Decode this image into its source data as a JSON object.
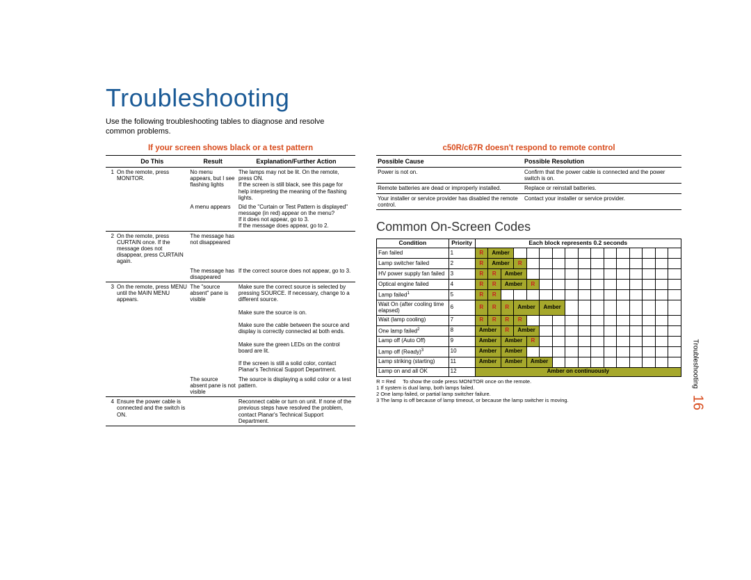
{
  "page": {
    "title": "Troubleshooting",
    "intro": "Use the following troubleshooting tables to diagnose and resolve common problems.",
    "side_section": "Troubleshooting",
    "page_number": "16"
  },
  "left": {
    "heading": "If your screen shows black or a test pattern",
    "cols": [
      "Do This",
      "Result",
      "Explanation/Further Action"
    ],
    "rows": [
      {
        "n": "1",
        "do": "On the remote, press MONITOR.",
        "res": "No menu appears, but I see flashing lights",
        "exp": "The lamps may not be lit. On the remote, press ON.\nIf the screen is still black, see this page for help interpreting the meaning of the flashing lights.",
        "border": false
      },
      {
        "n": "",
        "do": "",
        "res": "A menu appears",
        "exp": "Did the \"Curtain or Test Pattern is displayed\" message (in red) appear on the menu?\nIf it does not appear, go to 3.\nIf the message does appear, go to 2.",
        "border": true
      },
      {
        "n": "2",
        "do": "On the remote, press CURTAIN once. If the message does not disappear, press CURTAIN again.",
        "res": "The message has not disappeared",
        "exp": "",
        "border": false
      },
      {
        "n": "",
        "do": "",
        "res": "The message has disappeared",
        "exp": "If the correct source does not appear, go to 3.",
        "border": true
      },
      {
        "n": "3",
        "do": "On the remote, press MENU until the MAIN MENU appears.",
        "res": "The \"source absent\" pane is visible",
        "exp": "Make sure the correct source is selected by pressing SOURCE. If necessary, change to a different source.\n\nMake sure the source is on.\n\nMake sure the cable between the source and display is correctly connected at both ends.\n\nMake sure the green LEDs on the control board are lit.\n\nIf the screen is still a solid color, contact Planar's Technical Support Department.",
        "border": false
      },
      {
        "n": "",
        "do": "",
        "res": "The source absent pane is not visible",
        "exp": "The source is displaying a solid color or a test pattern.",
        "border": true
      },
      {
        "n": "4",
        "do": "Ensure the power cable is connected and the switch is ON.",
        "res": "",
        "exp": "Reconnect cable or turn on unit. If none of the previous steps have resolved the problem, contact Planar's Technical Support Department.",
        "border": true
      }
    ]
  },
  "right_top": {
    "heading": "c50R/c67R doesn't respond to remote control",
    "cols": [
      "Possible Cause",
      "Possible Resolution"
    ],
    "rows": [
      {
        "cause": "Power is not on.",
        "res": "Confirm that the power cable is connected and the power switch is on."
      },
      {
        "cause": "Remote batteries are dead or improperly installed.",
        "res": "Replace or reinstall batteries."
      },
      {
        "cause": "Your installer or service provider has disabled the remote control.",
        "res": "Contact your installer or service provider."
      }
    ]
  },
  "codes": {
    "heading": "Common On-Screen Codes",
    "cols": [
      "Condition",
      "Priority",
      "Each block represents 0.2 seconds"
    ],
    "block_count": 16,
    "colors": {
      "amber_bg": "#a6a82c",
      "red_text": "#c81e1e"
    },
    "rows": [
      {
        "cond": "Fan failed",
        "prio": "1",
        "cells": [
          "R",
          "Amber",
          "",
          "",
          "",
          "",
          "",
          "",
          "",
          "",
          "",
          "",
          "",
          "",
          "",
          ""
        ]
      },
      {
        "cond": "Lamp switcher failed",
        "prio": "2",
        "cells": [
          "R",
          "Amber",
          "",
          "R",
          "",
          "",
          "",
          "",
          "",
          "",
          "",
          "",
          "",
          "",
          "",
          ""
        ]
      },
      {
        "cond": "HV power supply fan failed",
        "prio": "3",
        "cells": [
          "R",
          "R",
          "Amber",
          "",
          "",
          "",
          "",
          "",
          "",
          "",
          "",
          "",
          "",
          "",
          "",
          ""
        ]
      },
      {
        "cond": "Optical engine failed",
        "prio": "4",
        "cells": [
          "R",
          "R",
          "Amber",
          "",
          "R",
          "",
          "",
          "",
          "",
          "",
          "",
          "",
          "",
          "",
          "",
          ""
        ]
      },
      {
        "cond_html": "Lamp failed<sup>1</sup>",
        "prio": "5",
        "cells": [
          "R",
          "R",
          "",
          "",
          "",
          "",
          "",
          "",
          "",
          "",
          "",
          "",
          "",
          "",
          "",
          ""
        ]
      },
      {
        "cond": "Wait On (after cooling time elapsed)",
        "prio": "6",
        "cells": [
          "R",
          "R",
          "R",
          "Amber",
          "",
          "Amber",
          "",
          "",
          "",
          "",
          "",
          "",
          "",
          "",
          "",
          ""
        ]
      },
      {
        "cond": "Wait (lamp cooling)",
        "prio": "7",
        "cells": [
          "R",
          "R",
          "R",
          "R",
          "",
          "",
          "",
          "",
          "",
          "",
          "",
          "",
          "",
          "",
          "",
          ""
        ]
      },
      {
        "cond_html": "One lamp failed<sup>2</sup>",
        "prio": "8",
        "cells": [
          "Amber",
          "",
          "R",
          "Amber",
          "",
          "",
          "",
          "",
          "",
          "",
          "",
          "",
          "",
          "",
          "",
          ""
        ]
      },
      {
        "cond": "Lamp off (Auto Off)",
        "prio": "9",
        "cells": [
          "Amber",
          "",
          "Amber",
          "",
          "R",
          "",
          "",
          "",
          "",
          "",
          "",
          "",
          "",
          "",
          "",
          ""
        ]
      },
      {
        "cond_html": "Lamp off (Ready)<sup>3</sup>",
        "prio": "10",
        "cells": [
          "Amber",
          "",
          "Amber",
          "",
          "",
          "",
          "",
          "",
          "",
          "",
          "",
          "",
          "",
          "",
          "",
          ""
        ]
      },
      {
        "cond": "Lamp striking (starting)",
        "prio": "11",
        "cells": [
          "Amber",
          "",
          "Amber",
          "",
          "Amber",
          "",
          "",
          "",
          "",
          "",
          "",
          "",
          "",
          "",
          "",
          ""
        ]
      }
    ],
    "final_row": {
      "cond": "Lamp on and all OK",
      "prio": "12",
      "span_label": "Amber on continuously"
    },
    "footnotes": [
      "R = Red        To show the code press MONITOR once on the remote.",
      "1 If system is dual lamp, both lamps failed.",
      "2 One lamp failed, or partial lamp switcher failure.",
      "3 The lamp is off because of lamp timeout, or because the lamp switcher is moving."
    ]
  }
}
